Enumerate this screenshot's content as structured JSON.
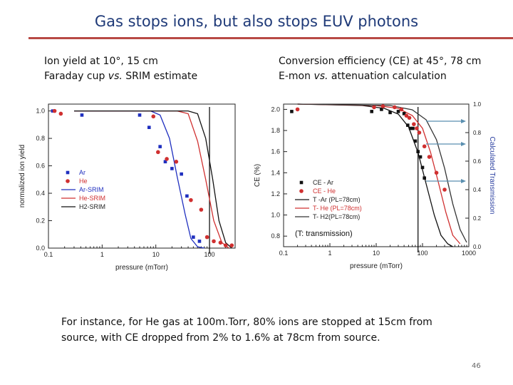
{
  "slide": {
    "title": "Gas stops ions, but also stops EUV photons",
    "left_subtitle": {
      "line1_prefix": "Ion yield at 10",
      "line1_suffix": ", 15 cm",
      "line2_prefix": "Faraday cup ",
      "line2_vs": "vs.",
      "line2_suffix": " SRIM estimate"
    },
    "right_subtitle": {
      "line1_prefix": "Conversion efficiency (CE) at 45",
      "line1_suffix": ", 78 cm",
      "line2_prefix": "E-mon ",
      "line2_vs": "vs.",
      "line2_suffix": " attenuation calculation"
    },
    "degree_mark": "°",
    "caption": "For instance, for He gas at 100m.Torr, 80% ions are stopped at 15cm from source, with CE dropped from 2% to 1.6% at 78cm from source.",
    "page_number": "46",
    "colors": {
      "title": "#1f3a78",
      "rule": "#b84a45",
      "ar": "#1f2fbf",
      "he": "#d03030",
      "black": "#111111"
    }
  },
  "chart_data": [
    {
      "type": "scatter",
      "title": "Ion yield at 10°, 15 cm",
      "xlabel": "pressure (mTorr)",
      "ylabel": "normalized ion yield",
      "xscale": "log",
      "xlim": [
        0.1,
        300
      ],
      "ylim": [
        0.0,
        1.05
      ],
      "xticks": [
        0.1,
        1,
        10,
        100
      ],
      "xtick_labels": [
        "0.1",
        "1",
        "10",
        "100"
      ],
      "yticks": [
        0.0,
        0.2,
        0.4,
        0.6,
        0.8,
        1.0
      ],
      "ytick_labels": [
        "0.0",
        "0.2",
        "0.4",
        "0.6",
        "0.8",
        "1.0"
      ],
      "marker_line": 100,
      "legend": [
        "Ar",
        "He",
        "Ar-SRIM",
        "He-SRIM",
        "H2-SRIM"
      ],
      "legend_location": "lower-left",
      "series": [
        {
          "name": "Ar",
          "kind": "points",
          "marker": "square",
          "color": "#1f2fbf",
          "x": [
            0.12,
            0.42,
            5.0,
            7.5,
            12,
            15,
            20,
            30,
            38,
            50,
            65
          ],
          "y": [
            1.0,
            0.97,
            0.97,
            0.88,
            0.74,
            0.63,
            0.58,
            0.54,
            0.38,
            0.08,
            0.05
          ]
        },
        {
          "name": "He",
          "kind": "points",
          "marker": "circle",
          "color": "#d03030",
          "x": [
            0.13,
            0.17,
            9.0,
            11,
            16,
            24,
            45,
            70,
            90,
            120,
            160,
            200,
            260
          ],
          "y": [
            1.0,
            0.98,
            0.96,
            0.7,
            0.65,
            0.63,
            0.35,
            0.28,
            0.08,
            0.05,
            0.04,
            0.02,
            0.02
          ]
        },
        {
          "name": "Ar-SRIM",
          "kind": "line",
          "color": "#1f2fbf",
          "x": [
            0.3,
            8,
            12,
            18,
            25,
            35,
            45,
            60,
            80
          ],
          "y": [
            1.0,
            1.0,
            0.97,
            0.8,
            0.52,
            0.25,
            0.07,
            0.01,
            0.0
          ]
        },
        {
          "name": "He-SRIM",
          "kind": "line",
          "color": "#d03030",
          "x": [
            0.3,
            25,
            40,
            60,
            85,
            120,
            170,
            230
          ],
          "y": [
            1.0,
            1.0,
            0.98,
            0.78,
            0.5,
            0.2,
            0.04,
            0.0
          ]
        },
        {
          "name": "H2-SRIM",
          "kind": "line",
          "color": "#111111",
          "x": [
            0.3,
            40,
            60,
            85,
            115,
            150,
            200,
            260
          ],
          "y": [
            1.0,
            1.0,
            0.98,
            0.8,
            0.5,
            0.2,
            0.04,
            0.0
          ]
        }
      ]
    },
    {
      "type": "scatter",
      "title": "Conversion efficiency (CE) at 45°, 78 cm",
      "xlabel": "pressure (mTorr)",
      "ylabel": "CE (%)",
      "ylabel_right": "Calculated Transmission",
      "xscale": "log",
      "xlim": [
        0.1,
        1000
      ],
      "ylim": [
        0.7,
        2.05
      ],
      "ylim_right": [
        0.0,
        1.0
      ],
      "xticks": [
        0.1,
        1,
        10,
        100,
        1000
      ],
      "xtick_labels": [
        "0.1",
        "1",
        "10",
        "100",
        "1000"
      ],
      "yticks": [
        0.8,
        1.0,
        1.2,
        1.4,
        1.6,
        1.8,
        2.0
      ],
      "ytick_labels": [
        "0.8",
        "1.0",
        "1.2",
        "1.4",
        "1.6",
        "1.8",
        "2.0"
      ],
      "yticks_right": [
        0.0,
        0.2,
        0.4,
        0.6,
        0.8,
        1.0
      ],
      "ytick_labels_right": [
        "0.0",
        "0.2",
        "0.4",
        "0.6",
        "0.8",
        "1.0"
      ],
      "marker_line": 80,
      "annotation": "(T: transmission)",
      "legend": [
        "CE - Ar",
        "CE - He",
        "T -Ar (PL=78cm)",
        "T- He (PL=78cm)",
        "T- H2(PL=78cm)"
      ],
      "legend_location": "lower-left",
      "series": [
        {
          "name": "CE - Ar",
          "kind": "points",
          "marker": "square",
          "color": "#111111",
          "x": [
            0.15,
            8,
            13,
            20,
            30,
            40,
            48,
            55,
            62,
            70,
            80,
            90,
            100,
            110
          ],
          "y": [
            1.98,
            1.98,
            2.0,
            1.97,
            1.98,
            1.96,
            1.85,
            1.82,
            1.82,
            1.7,
            1.6,
            1.55,
            1.45,
            1.35
          ]
        },
        {
          "name": "CE - He",
          "kind": "points",
          "marker": "circle",
          "color": "#d03030",
          "x": [
            0.2,
            9,
            14,
            25,
            35,
            45,
            52,
            65,
            75,
            85,
            110,
            140,
            200,
            300
          ],
          "y": [
            2.0,
            2.02,
            2.03,
            2.02,
            2.0,
            1.94,
            1.92,
            1.86,
            1.82,
            1.78,
            1.65,
            1.55,
            1.4,
            1.24
          ]
        },
        {
          "name": "T -Ar (PL=78cm)",
          "kind": "line",
          "color": "#111111",
          "x": [
            0.2,
            5,
            15,
            30,
            50,
            80,
            120,
            180,
            250,
            350,
            450
          ],
          "y": [
            1.0,
            0.99,
            0.97,
            0.93,
            0.84,
            0.66,
            0.44,
            0.22,
            0.08,
            0.02,
            0.0
          ]
        },
        {
          "name": "T- He (PL=78cm)",
          "kind": "line",
          "color": "#d03030",
          "x": [
            0.2,
            10,
            30,
            60,
            100,
            150,
            220,
            320,
            450,
            650
          ],
          "y": [
            1.0,
            0.99,
            0.97,
            0.92,
            0.83,
            0.66,
            0.45,
            0.24,
            0.08,
            0.02
          ]
        },
        {
          "name": "T- H2(PL=78cm)",
          "kind": "line",
          "color": "#333333",
          "x": [
            0.2,
            20,
            60,
            120,
            200,
            300,
            450,
            650,
            900
          ],
          "y": [
            1.0,
            0.99,
            0.96,
            0.89,
            0.75,
            0.55,
            0.3,
            0.12,
            0.03
          ]
        }
      ]
    }
  ]
}
